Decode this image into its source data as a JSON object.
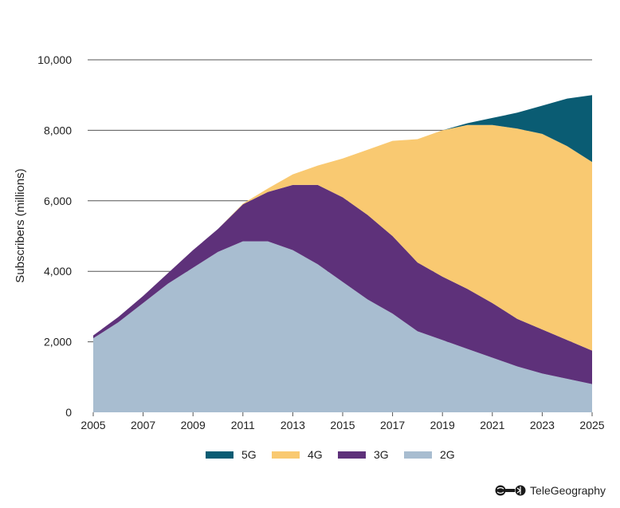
{
  "chart_data": {
    "type": "area",
    "stacked": true,
    "x": [
      2005,
      2006,
      2007,
      2008,
      2009,
      2010,
      2011,
      2012,
      2013,
      2014,
      2015,
      2016,
      2017,
      2018,
      2019,
      2020,
      2021,
      2022,
      2023,
      2024,
      2025
    ],
    "series": [
      {
        "name": "2G",
        "color": "#a8bdd0",
        "values": [
          2100,
          2550,
          3100,
          3650,
          4100,
          4550,
          4850,
          4850,
          4600,
          4200,
          3700,
          3200,
          2800,
          2300,
          2050,
          1800,
          1550,
          1300,
          1100,
          950,
          800
        ]
      },
      {
        "name": "3G",
        "color": "#5e317a",
        "values": [
          80,
          150,
          200,
          300,
          500,
          650,
          1050,
          1400,
          1850,
          2250,
          2400,
          2400,
          2200,
          1950,
          1800,
          1700,
          1550,
          1350,
          1250,
          1100,
          950
        ]
      },
      {
        "name": "4G",
        "color": "#f9c971",
        "values": [
          0,
          0,
          0,
          0,
          0,
          0,
          20,
          100,
          300,
          550,
          1100,
          1850,
          2700,
          3500,
          4150,
          4650,
          5050,
          5400,
          5550,
          5500,
          5350
        ]
      },
      {
        "name": "5G",
        "color": "#0a5c73",
        "values": [
          0,
          0,
          0,
          0,
          0,
          0,
          0,
          0,
          0,
          0,
          0,
          0,
          0,
          0,
          0,
          50,
          200,
          450,
          800,
          1350,
          1900
        ]
      }
    ],
    "ylabel": "Subscribers (millions)",
    "ylim": [
      0,
      10000
    ],
    "yticks": [
      "0",
      "2,000",
      "4,000",
      "6,000",
      "8,000",
      "10,000"
    ],
    "ytick_values": [
      0,
      2000,
      4000,
      6000,
      8000,
      10000
    ],
    "xticks": [
      "2005",
      "2007",
      "2009",
      "2011",
      "2013",
      "2015",
      "2017",
      "2019",
      "2021",
      "2023",
      "2025"
    ],
    "xtick_values": [
      2005,
      2007,
      2009,
      2011,
      2013,
      2015,
      2017,
      2019,
      2021,
      2023,
      2025
    ],
    "legend_order": [
      "5G",
      "4G",
      "3G",
      "2G"
    ],
    "legend_position": "bottom-center",
    "grid": true
  },
  "branding": {
    "logo_text": "TeleGeography"
  }
}
